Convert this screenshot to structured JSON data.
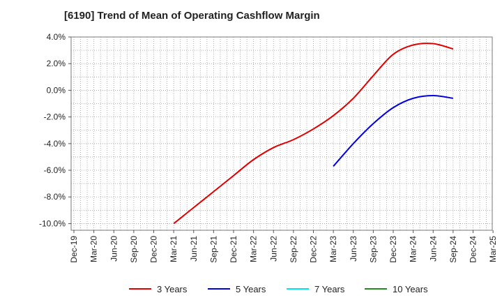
{
  "chart_data": {
    "type": "line",
    "title": "[6190]  Trend of Mean of Operating Cashflow Margin",
    "xlabel": "",
    "ylabel": "",
    "ylim": [
      -10.5,
      4.0
    ],
    "yticks": [
      4.0,
      2.0,
      0.0,
      -2.0,
      -4.0,
      -6.0,
      -8.0,
      -10.0
    ],
    "ytick_labels": [
      "4.0%",
      "2.0%",
      "0.0%",
      "-2.0%",
      "-4.0%",
      "-6.0%",
      "-8.0%",
      "-10.0%"
    ],
    "categories": [
      "Dec-19",
      "Mar-20",
      "Jun-20",
      "Sep-20",
      "Dec-20",
      "Mar-21",
      "Jun-21",
      "Sep-21",
      "Dec-21",
      "Mar-22",
      "Jun-22",
      "Sep-22",
      "Dec-22",
      "Mar-23",
      "Jun-23",
      "Sep-23",
      "Dec-23",
      "Mar-24",
      "Jun-24",
      "Sep-24",
      "Dec-24",
      "Mar-25"
    ],
    "grid": true,
    "legend_position": "bottom",
    "series": [
      {
        "name": "3 Years",
        "color": "#e00000",
        "values": [
          null,
          null,
          null,
          null,
          null,
          -10.0,
          -8.8,
          -7.6,
          -6.4,
          -5.2,
          -4.3,
          -3.7,
          -2.9,
          -1.9,
          -0.6,
          1.1,
          2.7,
          3.4,
          3.5,
          3.1,
          null,
          null
        ]
      },
      {
        "name": "5 Years",
        "color": "#0000e0",
        "values": [
          null,
          null,
          null,
          null,
          null,
          null,
          null,
          null,
          null,
          null,
          null,
          null,
          null,
          -5.7,
          -4.0,
          -2.5,
          -1.3,
          -0.6,
          -0.4,
          -0.6,
          null,
          null
        ]
      },
      {
        "name": "7 Years",
        "color": "#00e5ee",
        "values": [
          null,
          null,
          null,
          null,
          null,
          null,
          null,
          null,
          null,
          null,
          null,
          null,
          null,
          null,
          null,
          null,
          null,
          null,
          null,
          null,
          null,
          null
        ]
      },
      {
        "name": "10 Years",
        "color": "#228b22",
        "values": [
          null,
          null,
          null,
          null,
          null,
          null,
          null,
          null,
          null,
          null,
          null,
          null,
          null,
          null,
          null,
          null,
          null,
          null,
          null,
          null,
          null,
          null
        ]
      }
    ]
  }
}
